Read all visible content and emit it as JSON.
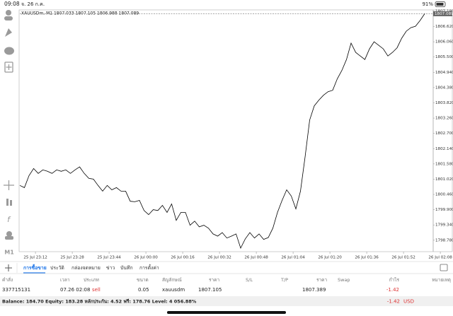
{
  "status_bar": {
    "time": "09:08",
    "date": "จ. 26 ก.ค.",
    "battery": "91%"
  },
  "left_toolbar": {
    "timeframe": "M1"
  },
  "chart_data": {
    "type": "line",
    "title": "XAUUSDm, M1  1807.033 1807.105 1806.988 1807.089",
    "color": "#000000",
    "values": [
      1800.79,
      1800.71,
      1801.15,
      1801.41,
      1801.23,
      1801.36,
      1801.31,
      1801.23,
      1801.36,
      1801.31,
      1801.36,
      1801.23,
      1801.36,
      1801.47,
      1801.23,
      1801.05,
      1801.02,
      1800.79,
      1800.58,
      1800.79,
      1800.63,
      1800.71,
      1800.58,
      1800.58,
      1800.21,
      1800.19,
      1800.24,
      1799.87,
      1799.72,
      1799.9,
      1799.87,
      1800.06,
      1799.8,
      1800.11,
      1799.51,
      1799.8,
      1799.8,
      1799.33,
      1799.48,
      1799.27,
      1799.33,
      1799.22,
      1799.01,
      1798.93,
      1799.06,
      1798.86,
      1798.93,
      1799.01,
      1798.49,
      1798.83,
      1799.06,
      1798.86,
      1799.01,
      1798.81,
      1798.88,
      1799.22,
      1799.8,
      1800.24,
      1800.63,
      1800.4,
      1799.93,
      1800.58,
      1801.83,
      1803.19,
      1803.71,
      1803.92,
      1804.1,
      1804.23,
      1804.28,
      1804.7,
      1805.01,
      1805.41,
      1806.01,
      1805.67,
      1805.54,
      1805.41,
      1805.8,
      1806.06,
      1805.93,
      1805.8,
      1805.54,
      1805.67,
      1805.84,
      1806.19,
      1806.45,
      1806.58,
      1806.63,
      1806.84,
      1807.09
    ],
    "current_price": 1807.089,
    "xlim": [
      0,
      90
    ],
    "ylim": [
      1798.36,
      1807.23
    ],
    "yticks": [
      {
        "value": 1807.18,
        "label": "1807.180"
      },
      {
        "value": 1806.62,
        "label": "1806.620"
      },
      {
        "value": 1806.06,
        "label": "1806.060"
      },
      {
        "value": 1805.5,
        "label": "1805.500"
      },
      {
        "value": 1804.94,
        "label": "1804.940"
      },
      {
        "value": 1804.38,
        "label": "1804.380"
      },
      {
        "value": 1803.82,
        "label": "1803.820"
      },
      {
        "value": 1803.26,
        "label": "1803.260"
      },
      {
        "value": 1802.7,
        "label": "1802.700"
      },
      {
        "value": 1802.14,
        "label": "1802.140"
      },
      {
        "value": 1801.58,
        "label": "1801.580"
      },
      {
        "value": 1801.02,
        "label": "1801.020"
      },
      {
        "value": 1800.46,
        "label": "1800.460"
      },
      {
        "value": 1799.9,
        "label": "1799.900"
      },
      {
        "value": 1799.34,
        "label": "1799.340"
      },
      {
        "value": 1798.78,
        "label": "1798.780"
      }
    ],
    "xticks": [
      {
        "value": 3.4,
        "label": "25 Jul 23:12"
      },
      {
        "value": 11.4,
        "label": "25 Jul 23:28"
      },
      {
        "value": 19.4,
        "label": "25 Jul 23:44"
      },
      {
        "value": 27.4,
        "label": "26 Jul 00:00"
      },
      {
        "value": 35.4,
        "label": "26 Jul 00:16"
      },
      {
        "value": 43.4,
        "label": "26 Jul 00:32"
      },
      {
        "value": 51.4,
        "label": "26 Jul 00:48"
      },
      {
        "value": 59.4,
        "label": "26 Jul 01:04"
      },
      {
        "value": 67.4,
        "label": "26 Jul 01:20"
      },
      {
        "value": 75.4,
        "label": "26 Jul 01:36"
      },
      {
        "value": 83.4,
        "label": "26 Jul 01:52"
      },
      {
        "value": 91.4,
        "label": "26 Jul 02:08"
      }
    ]
  },
  "tabs": [
    "การซื้อขาย",
    "ประวัติ",
    "กล่องจดหมาย",
    "ข่าว",
    "บันทึก",
    "การตั้งค่า"
  ],
  "table": {
    "headers": [
      "คำสั่ง",
      "เวลา",
      "ประเภท",
      "ขนาด",
      "สัญลักษณ์",
      "ราคา",
      "S/L",
      "T/P",
      "ราคา",
      "Swap",
      "กำไร",
      "หมายเหตุ"
    ],
    "row": {
      "order": "337715131",
      "time": "07.26 02:08",
      "type": "sell",
      "volume": "0.05",
      "symbol": "xauusdm",
      "open_price": "1807.105",
      "price": "1807.389",
      "profit": "-1.42"
    }
  },
  "summary": {
    "text": "Balance: 184.70 Equity: 183.28 หลักประกัน: 4.52 ฟรี: 178.76 Level: 4 056.88%",
    "profit": "-1.42",
    "currency": "USD"
  }
}
